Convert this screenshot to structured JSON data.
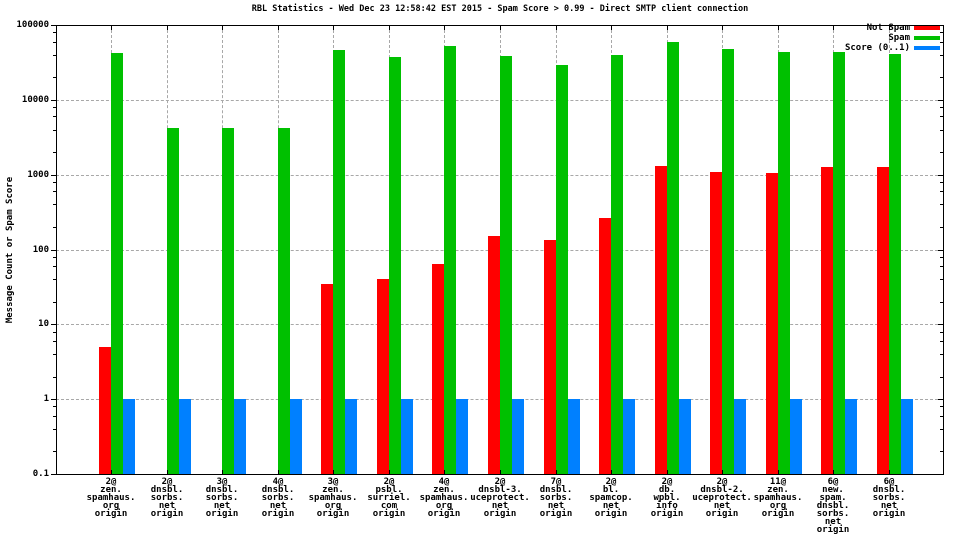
{
  "title": "RBL Statistics - Wed Dec 23 12:58:42 EST 2015 - Spam Score > 0.99 - Direct SMTP client connection",
  "ylabel": "Message Count or Spam Score",
  "colors": {
    "not_spam": "#ff0000",
    "spam": "#00c000",
    "score": "#0080ff",
    "grid": "#a8a8a8",
    "axis": "#000000",
    "background": "#ffffff"
  },
  "legend": {
    "position": "top-right",
    "entries": [
      "Not Spam",
      "Spam",
      "Score (0..1)"
    ]
  },
  "chart_data": {
    "type": "bar",
    "yscale": "log",
    "ylim": [
      0.1,
      100000
    ],
    "yticks": [
      0.1,
      1,
      10,
      100,
      1000,
      10000,
      100000
    ],
    "ytick_labels": [
      "0.1",
      "1",
      "10",
      "100",
      "1000",
      "10000",
      "100000"
    ],
    "grid": true,
    "title": "RBL Statistics - Wed Dec 23 12:58:42 EST 2015 - Spam Score > 0.99 - Direct SMTP client connection",
    "xlabel": "",
    "ylabel": "Message Count or Spam Score",
    "categories": [
      "2@\nzen.\nspamhaus.\norg\norigin",
      "2@\ndnsbl.\nsorbs.\nnet\norigin",
      "3@\ndnsbl.\nsorbs.\nnet\norigin",
      "4@\ndnsbl.\nsorbs.\nnet\norigin",
      "3@\nzen.\nspamhaus.\norg\norigin",
      "2@\npsbl.\nsurriel.\ncom\norigin",
      "4@\nzen.\nspamhaus.\norg\norigin",
      "2@\ndnsbl-3.\nuceprotect.\nnet\norigin",
      "7@\ndnsbl.\nsorbs.\nnet\norigin",
      "2@\nbl.\nspamcop.\nnet\norigin",
      "2@\ndb.\nwpbl.\ninfo\norigin",
      "2@\ndnsbl-2.\nuceprotect.\nnet\norigin",
      "11@\nzen.\nspamhaus.\norg\norigin",
      "6@\nnew.\nspam.\ndnsbl.\nsorbs.\nnet\norigin",
      "6@\ndnsbl.\nsorbs.\nnet\norigin"
    ],
    "series": [
      {
        "name": "Not Spam",
        "color": "#ff0000",
        "values": [
          5,
          null,
          null,
          null,
          35,
          40,
          65,
          150,
          135,
          260,
          1300,
          1100,
          1050,
          1250,
          1250
        ]
      },
      {
        "name": "Spam",
        "color": "#00c000",
        "values": [
          42000,
          4200,
          4200,
          4200,
          46000,
          37000,
          52000,
          38000,
          29000,
          40000,
          60000,
          48000,
          43000,
          43000,
          41000
        ]
      },
      {
        "name": "Score (0..1)",
        "color": "#0080ff",
        "values": [
          1,
          1,
          1,
          1,
          1,
          1,
          1,
          1,
          1,
          1,
          1,
          1,
          1,
          1,
          1
        ]
      }
    ]
  }
}
